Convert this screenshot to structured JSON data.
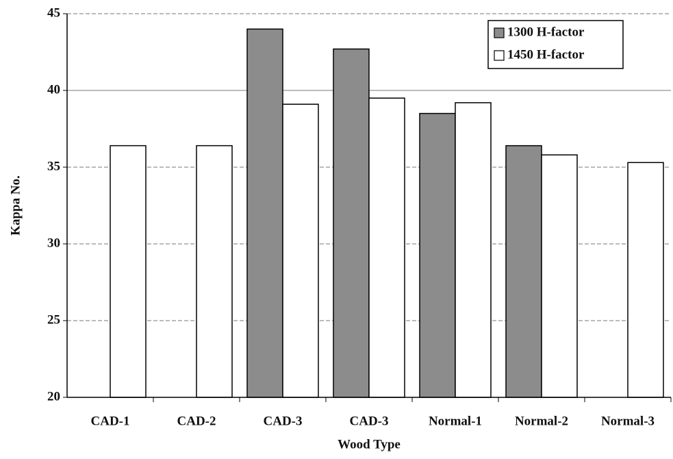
{
  "chart_data": {
    "type": "bar",
    "x_label": "Wood Type",
    "y_label": "Kappa No.",
    "categories": [
      "CAD-1",
      "CAD-2",
      "CAD-3",
      "CAD-3",
      "Normal-1",
      "Normal-2",
      "Normal-3"
    ],
    "series": [
      {
        "name": "1300 H-factor",
        "color": "#8c8c8c",
        "values": [
          null,
          null,
          44,
          42.7,
          38.5,
          36.4,
          null
        ]
      },
      {
        "name": "1450 H-factor",
        "color": "#ffffff",
        "values": [
          36.4,
          36.4,
          39.1,
          39.5,
          39.2,
          35.8,
          35.3
        ]
      }
    ],
    "ylim": [
      20,
      45
    ],
    "yticks": [
      20,
      25,
      30,
      35,
      40,
      45
    ],
    "grid": true,
    "legend": "upper right"
  }
}
